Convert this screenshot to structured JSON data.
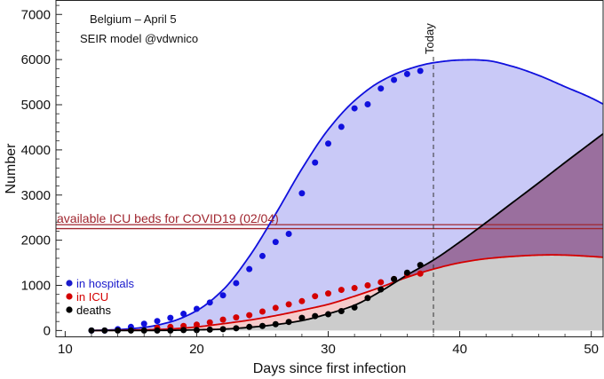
{
  "chart_data": {
    "type": "line",
    "title": "Belgium – April 5",
    "subtitle": "SEIR model @vdwnico",
    "xlabel": "Days since first infection",
    "ylabel": "Number",
    "xlim": [
      9.3,
      50.9
    ],
    "ylim": [
      -150,
      7300
    ],
    "x_ticks": [
      10,
      20,
      30,
      40,
      50
    ],
    "y_ticks": [
      0,
      1000,
      2000,
      3000,
      4000,
      5000,
      6000,
      7000
    ],
    "today": {
      "x": 38,
      "label": "Today"
    },
    "icu_capacity": {
      "y": 2300,
      "label": "available ICU beds for COVID19 (02/04)",
      "color": "#a0262f"
    },
    "colors": {
      "hospitals": "#1010dd",
      "hospitals_fill": "#c9c9f7",
      "icu": "#d40000",
      "icu_fill": "#f6cccc",
      "deaths": "#000000",
      "deaths_fill": "#cccccc",
      "overlap_fill": "#9a6f9e"
    },
    "legend": [
      {
        "label": "in hospitals",
        "color": "#1a1acc"
      },
      {
        "label": "in ICU",
        "color": "#d40000"
      },
      {
        "label": "deaths",
        "color": "#000000"
      }
    ],
    "series_points": [
      {
        "name": "in hospitals",
        "x": [
          12,
          13,
          14,
          15,
          16,
          17,
          18,
          19,
          20,
          21,
          22,
          23,
          24,
          25,
          26,
          27,
          28,
          29,
          30,
          31,
          32,
          33,
          34,
          35,
          36,
          37
        ],
        "y": [
          0,
          0,
          30,
          80,
          150,
          210,
          280,
          370,
          480,
          620,
          780,
          1050,
          1360,
          1650,
          1960,
          2140,
          3040,
          3720,
          4140,
          4510,
          4920,
          5010,
          5360,
          5550,
          5680,
          5750
        ]
      },
      {
        "name": "in ICU",
        "x": [
          17,
          18,
          19,
          20,
          21,
          22,
          23,
          24,
          25,
          26,
          27,
          28,
          29,
          30,
          31,
          32,
          33,
          34,
          35,
          36,
          37
        ],
        "y": [
          60,
          80,
          100,
          130,
          180,
          240,
          290,
          340,
          420,
          500,
          580,
          650,
          760,
          820,
          900,
          940,
          1000,
          1070,
          1140,
          1250,
          1260
        ]
      },
      {
        "name": "deaths",
        "x": [
          12,
          13,
          14,
          15,
          16,
          17,
          18,
          19,
          20,
          21,
          22,
          23,
          24,
          25,
          26,
          27,
          28,
          29,
          30,
          31,
          32,
          33,
          34,
          35,
          36,
          37
        ],
        "y": [
          0,
          0,
          0,
          0,
          0,
          0,
          0,
          10,
          10,
          20,
          30,
          50,
          80,
          100,
          140,
          190,
          280,
          320,
          360,
          430,
          510,
          720,
          910,
          1140,
          1280,
          1450
        ]
      }
    ],
    "series_model": [
      {
        "name": "in hospitals model",
        "x": [
          12,
          14,
          16,
          18,
          20,
          22,
          24,
          26,
          28,
          30,
          32,
          34,
          36,
          38,
          40,
          41,
          42,
          44,
          46,
          48,
          50,
          51
        ],
        "y": [
          0,
          20,
          70,
          190,
          440,
          900,
          1640,
          2580,
          3580,
          4450,
          5090,
          5520,
          5780,
          5930,
          5990,
          5995,
          5980,
          5850,
          5650,
          5400,
          5150,
          5000
        ]
      },
      {
        "name": "in ICU model",
        "x": [
          12,
          14,
          16,
          18,
          20,
          22,
          24,
          26,
          28,
          30,
          32,
          34,
          36,
          38,
          40,
          42,
          44,
          46,
          47,
          48,
          50,
          51
        ],
        "y": [
          0,
          5,
          15,
          35,
          80,
          150,
          230,
          330,
          450,
          580,
          760,
          960,
          1180,
          1360,
          1500,
          1590,
          1640,
          1670,
          1675,
          1670,
          1640,
          1620
        ]
      },
      {
        "name": "deaths model",
        "x": [
          12,
          16,
          18,
          20,
          22,
          24,
          26,
          28,
          30,
          32,
          34,
          36,
          38,
          40,
          42,
          44,
          46,
          48,
          50,
          51
        ],
        "y": [
          0,
          0,
          5,
          15,
          30,
          70,
          130,
          220,
          370,
          560,
          870,
          1230,
          1560,
          1960,
          2390,
          2830,
          3270,
          3720,
          4160,
          4380
        ]
      }
    ]
  }
}
